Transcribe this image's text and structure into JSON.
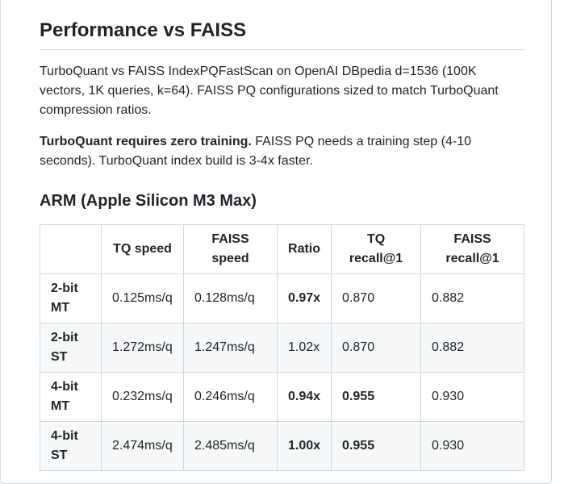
{
  "page": {
    "title": "Performance vs FAISS",
    "intro": "TurboQuant vs FAISS IndexPQFastScan on OpenAI DBpedia d=1536 (100K vectors, 1K queries, k=64). FAISS PQ configurations sized to match TurboQuant compression ratios.",
    "note_bold": "TurboQuant requires zero training.",
    "note_rest": " FAISS PQ needs a training step (4-10 seconds). TurboQuant index build is 3-4x faster."
  },
  "section": {
    "title": "ARM (Apple Silicon M3 Max)"
  },
  "table": {
    "headers": [
      "",
      "TQ speed",
      "FAISS speed",
      "Ratio",
      "TQ recall@1",
      "FAISS recall@1"
    ],
    "rows": [
      {
        "config": "2-bit MT",
        "tq_speed": "0.125ms/q",
        "faiss_speed": "0.128ms/q",
        "ratio": "0.97x",
        "tq_recall": "0.870",
        "faiss_recall": "0.882"
      },
      {
        "config": "2-bit ST",
        "tq_speed": "1.272ms/q",
        "faiss_speed": "1.247ms/q",
        "ratio": "1.02x",
        "tq_recall": "0.870",
        "faiss_recall": "0.882"
      },
      {
        "config": "4-bit MT",
        "tq_speed": "0.232ms/q",
        "faiss_speed": "0.246ms/q",
        "ratio": "0.94x",
        "tq_recall": "0.955",
        "faiss_recall": "0.930"
      },
      {
        "config": "4-bit ST",
        "tq_speed": "2.474ms/q",
        "faiss_speed": "2.485ms/q",
        "ratio": "1.00x",
        "tq_recall": "0.955",
        "faiss_recall": "0.930"
      }
    ]
  }
}
